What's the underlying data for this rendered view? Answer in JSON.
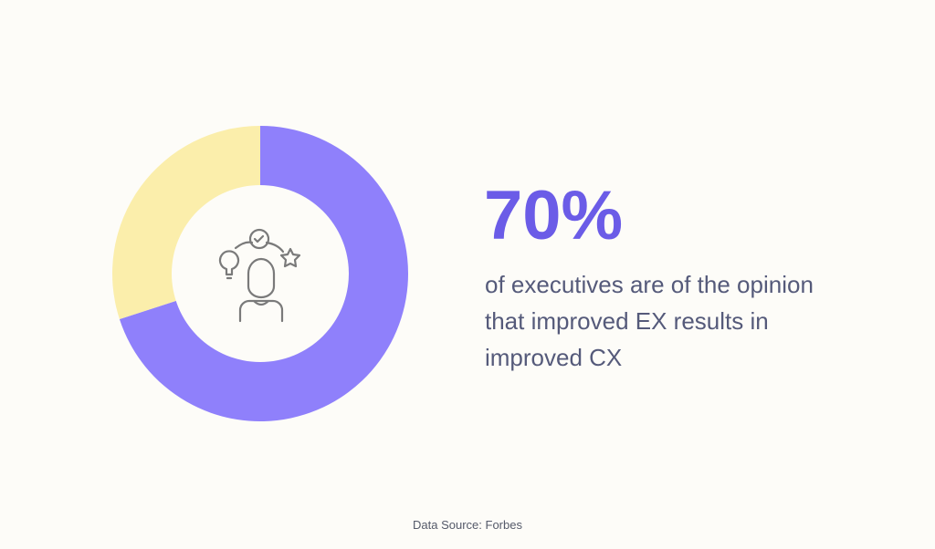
{
  "chart_data": {
    "type": "donut",
    "categories": [
      null,
      null
    ],
    "values": [
      70,
      30
    ],
    "value_labels": [
      "70%",
      null
    ],
    "colors": [
      "#8f80fb",
      "#fbeeab"
    ],
    "description": "of executives are of the opinion that improved EX results in improved CX",
    "source": "Data Source: Forbes"
  }
}
